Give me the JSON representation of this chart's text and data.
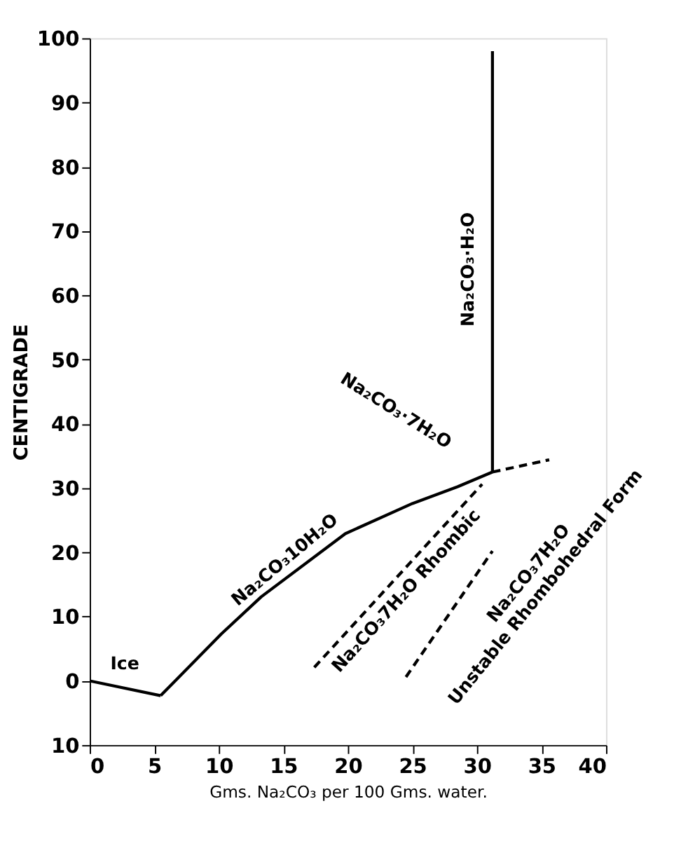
{
  "chart_data": {
    "type": "line",
    "xlabel": "Gms. Na₂CO₃ per 100 Gms. water.",
    "ylabel": "CENTIGRADE",
    "xlim": [
      0,
      40
    ],
    "xticks": [
      0,
      5,
      10,
      15,
      20,
      25,
      30,
      35,
      40
    ],
    "ylim": [
      -10,
      100
    ],
    "yticks": [
      {
        "value": -10,
        "label": "10"
      },
      0,
      10,
      20,
      30,
      40,
      50,
      60,
      70,
      80,
      90,
      100
    ],
    "grid": false,
    "marker": "none",
    "series": [
      {
        "color": "#000000",
        "line_style": "solid",
        "x": [
          0,
          5.5
        ],
        "values": [
          0,
          -2.3
        ]
      },
      {
        "color": "#000000",
        "line_style": "solid",
        "x": [
          5.5,
          10.2,
          13.3,
          19.8,
          25,
          28.5,
          31.2
        ],
        "values": [
          -2.3,
          7.3,
          13.1,
          22.9,
          27.6,
          30.2,
          32.5
        ]
      },
      {
        "color": "#000000",
        "line_style": "solid",
        "x": [
          31.2,
          31.2
        ],
        "values": [
          32.5,
          98
        ]
      },
      {
        "color": "#000000",
        "line_style": "dashed",
        "x": [
          31.2,
          35.6
        ],
        "values": [
          32.5,
          34.4
        ]
      },
      {
        "color": "#000000",
        "line_style": "dashed",
        "x": [
          17.4,
          30.4
        ],
        "values": [
          2.1,
          30.6
        ]
      },
      {
        "color": "#000000",
        "line_style": "dashed",
        "x": [
          24.5,
          31.2
        ],
        "values": [
          0.6,
          20.2
        ]
      }
    ],
    "annotations": [
      "Ice",
      "Na₂CO₃10H₂O",
      "Na₂CO₃·7H₂O",
      "Na₂CO₃·H₂O",
      "Na₂CO₃7H₂O Rhombic",
      "Na₂CO₃7H₂O\nUnstable Rhombohedral Form"
    ]
  }
}
